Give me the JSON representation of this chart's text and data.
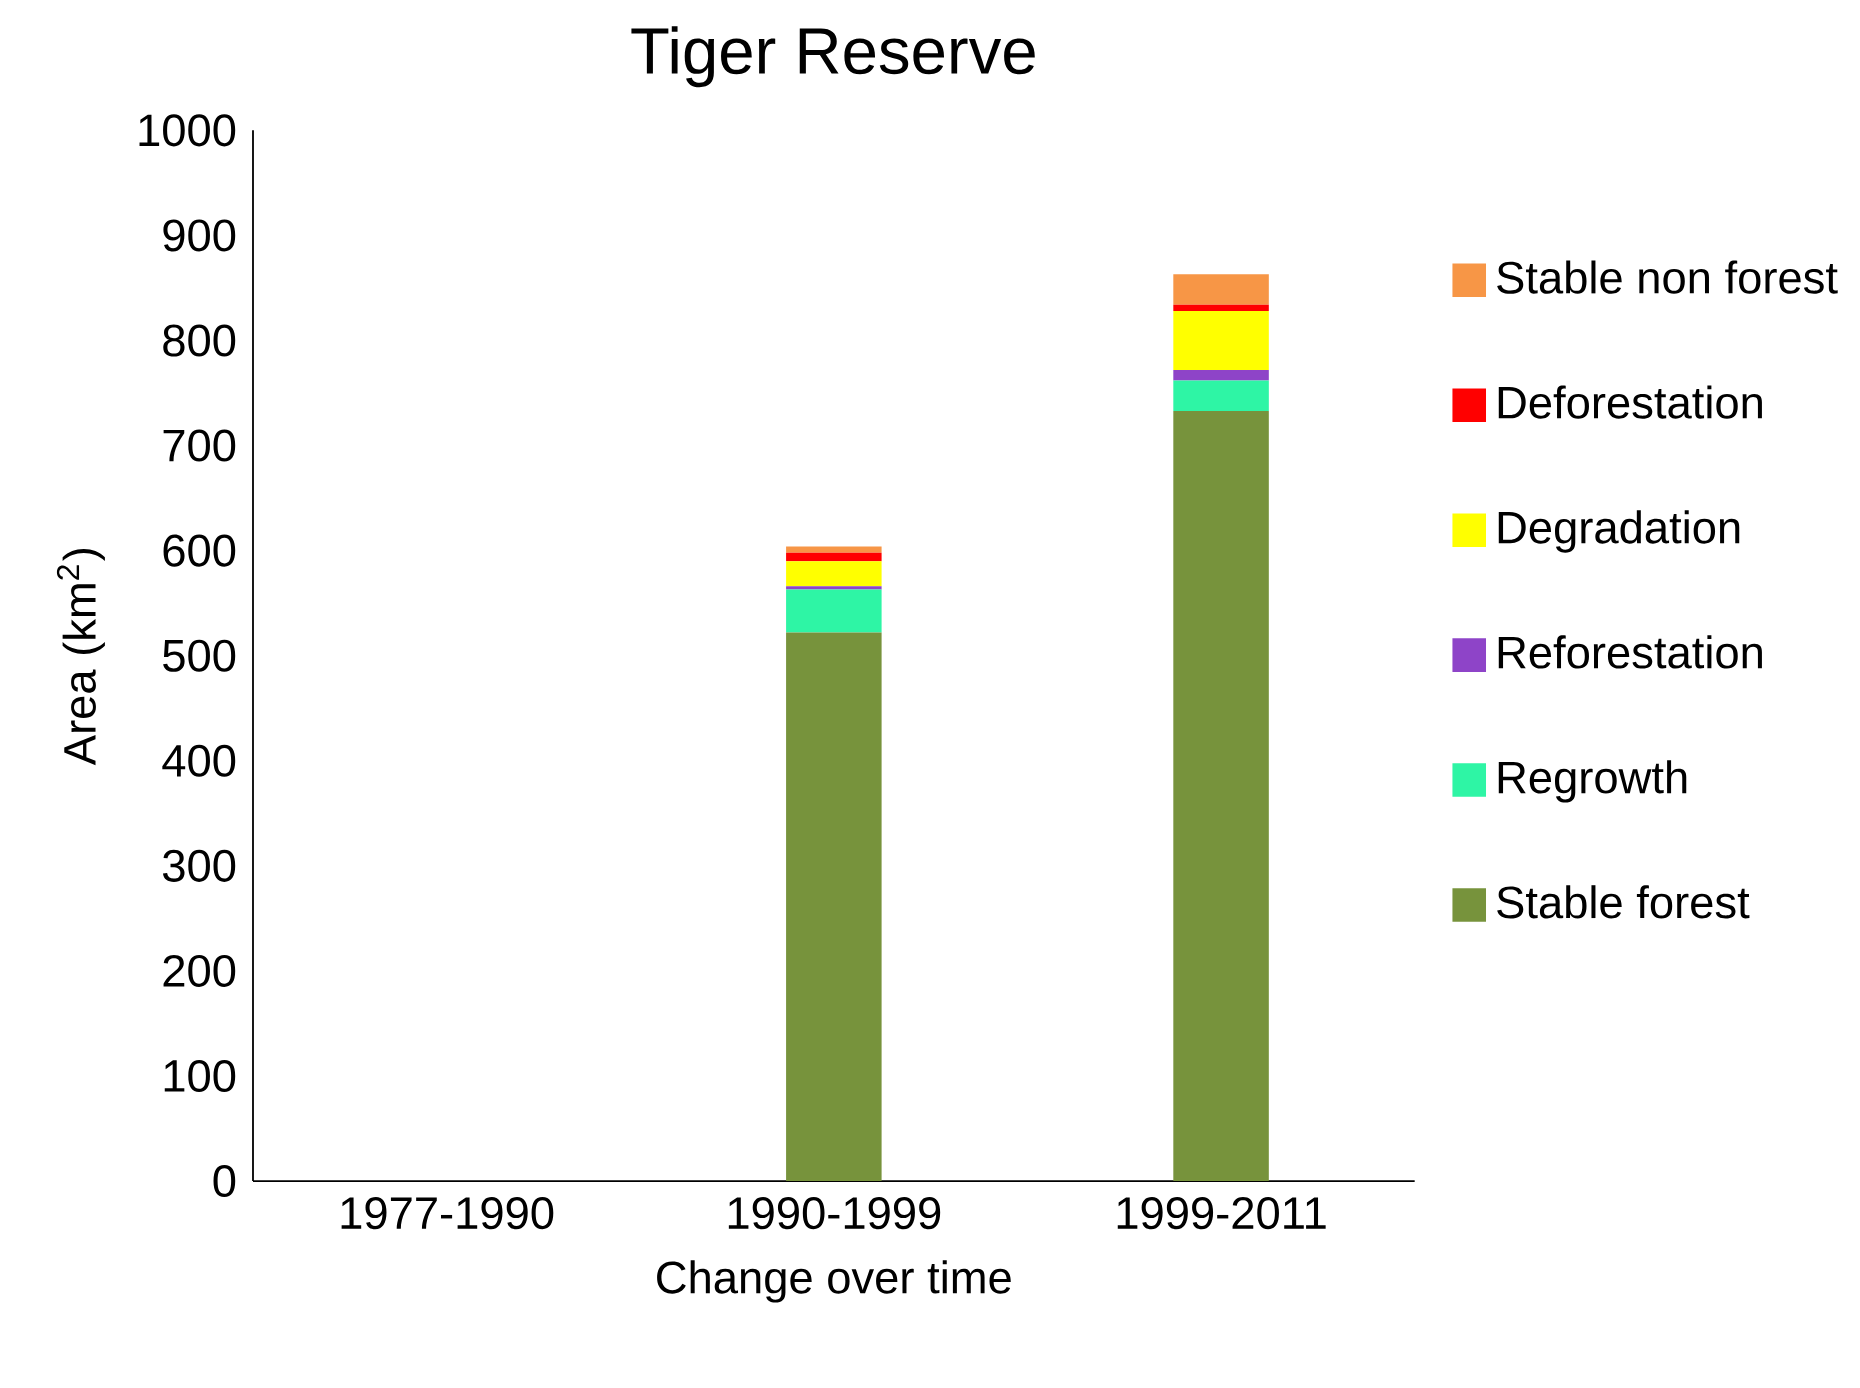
{
  "chart_data": {
    "type": "bar",
    "title": "Tiger Reserve",
    "xlabel": "Change over time",
    "ylabel": "Area (km$^{2}$)",
    "categories": [
      "1977-1990",
      "1990-1999",
      "1999-2011"
    ],
    "stacked": true,
    "series": [
      {
        "name": "Stable forest",
        "color": "#77933c",
        "values": [
          0,
          522,
          733
        ]
      },
      {
        "name": "Regrowth",
        "color": "#2ef5a5",
        "values": [
          0,
          41,
          29
        ]
      },
      {
        "name": "Reforestation",
        "color": "#8e44c8",
        "values": [
          0,
          3,
          10
        ]
      },
      {
        "name": "Degradation",
        "color": "#ffff00",
        "values": [
          0,
          24,
          56
        ]
      },
      {
        "name": "Deforestation",
        "color": "#ff0000",
        "values": [
          0,
          8,
          6
        ]
      },
      {
        "name": "Stable non forest",
        "color": "#f79646",
        "values": [
          0,
          6,
          29
        ]
      }
    ],
    "ylim": [
      0,
      1000
    ],
    "yticks": [
      0,
      100,
      200,
      300,
      400,
      500,
      600,
      700,
      800,
      900,
      1000
    ],
    "legend": "right"
  }
}
